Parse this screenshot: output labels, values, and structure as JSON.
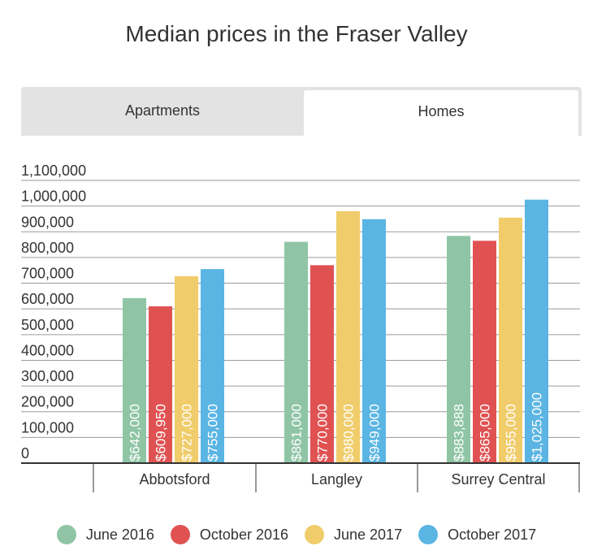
{
  "title": "Median prices in the Fraser Valley",
  "tabs": [
    {
      "label": "Apartments",
      "active": false
    },
    {
      "label": "Homes",
      "active": true
    }
  ],
  "chart_data": {
    "type": "bar",
    "categories": [
      "Abbotsford",
      "Langley",
      "Surrey Central"
    ],
    "series": [
      {
        "name": "June 2016",
        "color": "#8fc5a5",
        "values": [
          642000,
          861000,
          883888
        ],
        "labels": [
          "$642,000",
          "$861,000",
          "$883,888"
        ]
      },
      {
        "name": "October 2016",
        "color": "#e05252",
        "values": [
          609950,
          770000,
          865000
        ],
        "labels": [
          "$609,950",
          "$770,000",
          "$865,000"
        ]
      },
      {
        "name": "June 2017",
        "color": "#f0cc6a",
        "values": [
          727000,
          980000,
          955000
        ],
        "labels": [
          "$727,000",
          "$980,000",
          "$955,000"
        ]
      },
      {
        "name": "October 2017",
        "color": "#5bb5e3",
        "values": [
          755000,
          949000,
          1025000
        ],
        "labels": [
          "$755,000",
          "$949,000",
          "$1,025,000"
        ]
      }
    ],
    "ylim": [
      0,
      1100000
    ],
    "yticks": [
      "0",
      "100,000",
      "200,000",
      "300,000",
      "400,000",
      "500,000",
      "600,000",
      "700,000",
      "800,000",
      "900,000",
      "1,000,000",
      "1,100,000"
    ],
    "grid": true,
    "legend_position": "bottom"
  }
}
